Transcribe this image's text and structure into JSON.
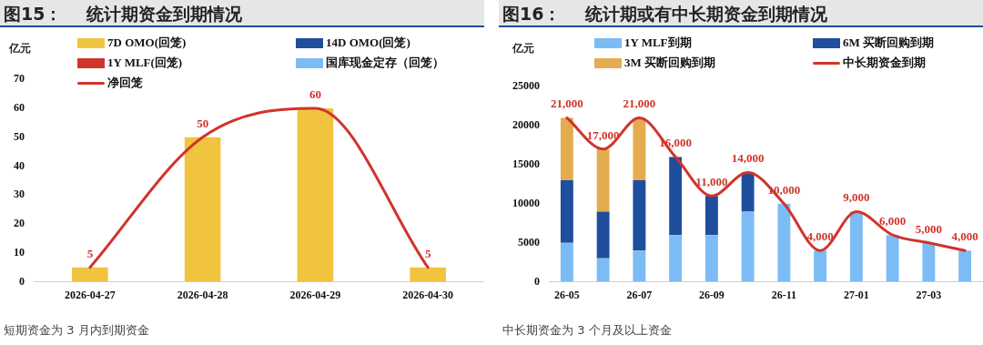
{
  "chart_data": [
    {
      "type": "bar",
      "title": "图15：    统计期资金到期情况",
      "ylabel": "亿元",
      "categories": [
        "2026-04-27",
        "2026-04-28",
        "2026-04-29",
        "2026-04-30"
      ],
      "stacked": true,
      "ylim": [
        0,
        70
      ],
      "yticks": [
        0,
        10,
        20,
        30,
        40,
        50,
        60,
        70
      ],
      "legend": "top",
      "series": [
        {
          "name": "7D OMO(回笼)",
          "color": "#f0c43f",
          "values": [
            5,
            50,
            60,
            5
          ]
        },
        {
          "name": "14D OMO(回笼)",
          "color": "#1f4e9c",
          "values": [
            null,
            null,
            null,
            null
          ]
        },
        {
          "name": "1Y MLF(回笼)",
          "color": "#d0342c",
          "values": [
            null,
            null,
            null,
            null
          ]
        },
        {
          "name": "国库现金定存（回笼）",
          "color": "#7bbcf5",
          "values": [
            null,
            null,
            null,
            null
          ]
        },
        {
          "name": "净回笼",
          "type": "line",
          "color": "#d0342c",
          "values": [
            5,
            50,
            60,
            5
          ],
          "value_labels": [
            "5",
            "50",
            "60",
            "5"
          ]
        }
      ],
      "annotations": [
        "短期资金为 3 月内到期资金"
      ]
    },
    {
      "type": "bar",
      "title": "图16：    统计期或有中长期资金到期情况",
      "ylabel": "亿元",
      "categories": [
        "26-05",
        null,
        "26-07",
        null,
        "26-09",
        null,
        "26-11",
        null,
        "27-01",
        null,
        "27-03",
        null
      ],
      "stacked": true,
      "ylim": [
        0,
        25000
      ],
      "yticks": [
        0,
        5000,
        10000,
        15000,
        20000,
        25000
      ],
      "legend": "top",
      "series": [
        {
          "name": "1Y MLF到期",
          "color": "#7bbcf5",
          "values": [
            5000,
            3000,
            4000,
            6000,
            6000,
            9000,
            10000,
            4000,
            9000,
            6000,
            5000,
            4000
          ]
        },
        {
          "name": "6M 买断回购到期",
          "color": "#1f4e9c",
          "values": [
            8000,
            6000,
            9000,
            10000,
            5000,
            5000,
            null,
            null,
            null,
            null,
            null,
            null
          ]
        },
        {
          "name": "3M 买断回购到期",
          "color": "#e4ac50",
          "values": [
            8000,
            8000,
            8000,
            null,
            null,
            null,
            null,
            null,
            null,
            null,
            null,
            null
          ]
        },
        {
          "name": "中长期资金到期",
          "type": "line",
          "color": "#d0342c",
          "values": [
            21000,
            17000,
            21000,
            16000,
            11000,
            14000,
            10000,
            4000,
            9000,
            6000,
            5000,
            4000
          ],
          "value_labels": [
            "21,000",
            "17,000",
            "21,000",
            "16,000",
            "11,000",
            "14,000",
            "10,000",
            "4,000",
            "9,000",
            "6,000",
            "5,000",
            "4,000"
          ]
        }
      ],
      "annotations": [
        "中长期资金为 3 个月及以上资金"
      ]
    }
  ]
}
